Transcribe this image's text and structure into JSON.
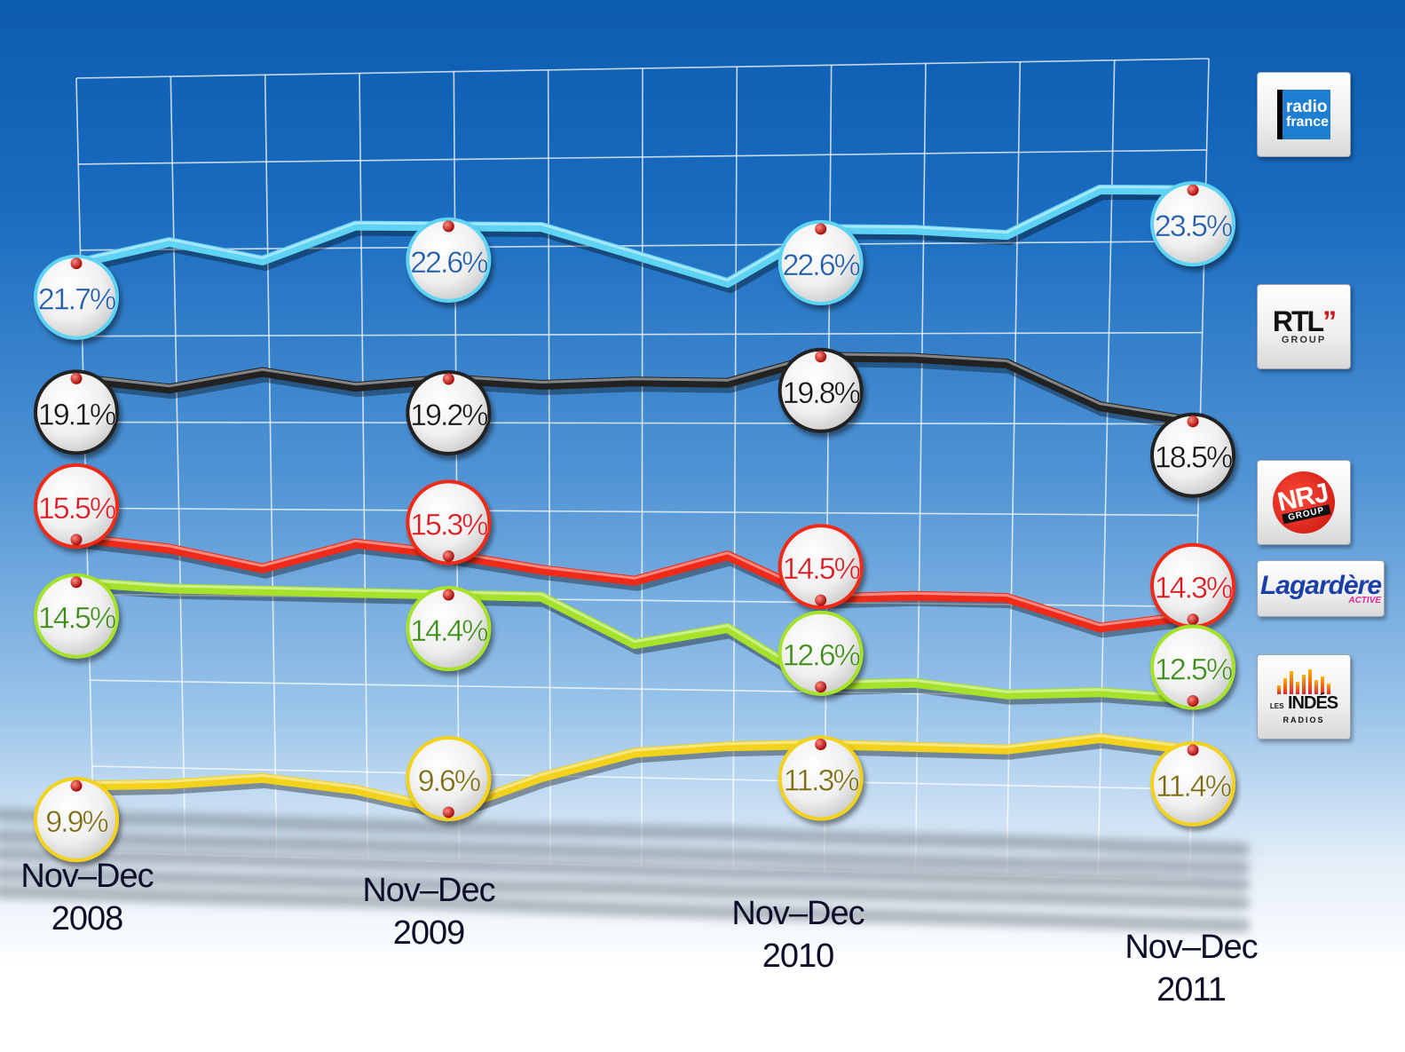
{
  "chart_data": {
    "type": "line",
    "title": "",
    "xlabel": "",
    "ylabel": "",
    "categories": [
      "Nov–Dec 2008",
      "Nov–Dec 2009",
      "Nov–Dec 2010",
      "Nov–Dec 2011"
    ],
    "x_label_lines": [
      [
        "Nov–Dec",
        "2008"
      ],
      [
        "Nov–Dec",
        "2009"
      ],
      [
        "Nov–Dec",
        "2010"
      ],
      [
        "Nov–Dec",
        "2011"
      ]
    ],
    "ylim": [
      9,
      24
    ],
    "grid": true,
    "legend": "right",
    "series": [
      {
        "name": "radio france",
        "color": "#5fd3f3",
        "badge_text_color": "#1f5aa8",
        "values": [
          21.7,
          22.6,
          22.6,
          23.5
        ],
        "labels": [
          "21.7%",
          "22.6%",
          "22.6%",
          "23.5%"
        ],
        "trend": [
          21.7,
          22.2,
          21.8,
          22.6,
          22.6,
          22.6,
          22.0,
          21.4,
          22.6,
          22.6,
          22.5,
          23.5,
          23.5
        ]
      },
      {
        "name": "RTL GROUP",
        "color": "#222222",
        "badge_text_color": "#111111",
        "values": [
          19.1,
          19.2,
          19.8,
          18.5
        ],
        "labels": [
          "19.1%",
          "19.2%",
          "19.8%",
          "18.5%"
        ],
        "trend": [
          19.1,
          18.9,
          19.3,
          19.0,
          19.2,
          19.1,
          19.2,
          19.2,
          19.8,
          19.8,
          19.7,
          18.8,
          18.5
        ]
      },
      {
        "name": "NRJ GROUP",
        "color": "#f02a18",
        "badge_text_color": "#d8121a",
        "values": [
          15.5,
          15.3,
          14.5,
          14.3
        ],
        "labels": [
          "15.5%",
          "15.3%",
          "14.5%",
          "14.3%"
        ],
        "trend": [
          15.5,
          15.3,
          14.9,
          15.5,
          15.3,
          15.0,
          14.8,
          15.4,
          14.5,
          14.6,
          14.6,
          14.0,
          14.3
        ]
      },
      {
        "name": "Lagardère ACTIVE",
        "color": "#a6e22a",
        "badge_text_color": "#3a8a14",
        "values": [
          14.5,
          14.4,
          12.6,
          12.5
        ],
        "labels": [
          "14.5%",
          "14.4%",
          "12.6%",
          "12.5%"
        ],
        "trend": [
          14.5,
          14.4,
          14.4,
          14.4,
          14.4,
          14.4,
          13.4,
          13.8,
          12.6,
          12.7,
          12.5,
          12.6,
          12.5
        ]
      },
      {
        "name": "LES INDÉS RADIOS",
        "color": "#f2d21a",
        "badge_text_color": "#7a6a10",
        "values": [
          9.9,
          9.6,
          11.3,
          11.4
        ],
        "labels": [
          "9.9%",
          "9.6%",
          "11.3%",
          "11.4%"
        ],
        "trend": [
          9.9,
          10.0,
          10.2,
          10.0,
          9.6,
          10.4,
          11.0,
          11.2,
          11.3,
          11.3,
          11.3,
          11.6,
          11.4
        ]
      }
    ]
  },
  "logos": [
    {
      "line1": "radio",
      "line2": "france"
    },
    {
      "line1": "RTL",
      "accent": "”",
      "line2": "GROUP"
    },
    {
      "line1": "NRJ",
      "line2": "GROUP"
    },
    {
      "line1": "Lagardère",
      "line2": "ACTIVE"
    },
    {
      "line1": "INDÉS",
      "prefix": "LES",
      "line2": "RADIOS"
    }
  ]
}
